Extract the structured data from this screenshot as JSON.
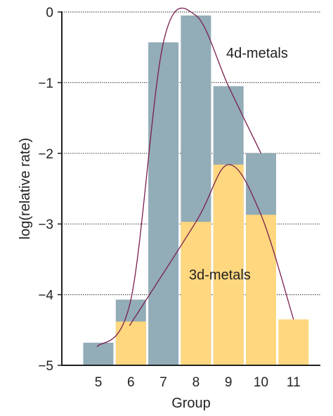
{
  "chart_data": {
    "type": "bar",
    "xlabel": "Group",
    "ylabel": "log(relative rate)",
    "categories": [
      "5",
      "6",
      "7",
      "8",
      "9",
      "10",
      "11"
    ],
    "ylim": [
      -5,
      0
    ],
    "yticks": [
      {
        "value": 0,
        "label": "0"
      },
      {
        "value": -1,
        "label": "−1"
      },
      {
        "value": -2,
        "label": "−2"
      },
      {
        "value": -3,
        "label": "−3"
      },
      {
        "value": -4,
        "label": "−4"
      },
      {
        "value": -5,
        "label": "−5"
      }
    ],
    "grid": true,
    "series": [
      {
        "name": "4d-metals",
        "color": "#92acb8",
        "values": [
          -4.68,
          -4.07,
          -0.43,
          -0.05,
          -1.05,
          -2.0,
          null
        ]
      },
      {
        "name": "3d-metals",
        "color": "#fed77e",
        "values": [
          null,
          -4.38,
          null,
          -2.97,
          -2.16,
          -2.87,
          -4.35
        ]
      }
    ],
    "curve_color": "#7a1e4e"
  }
}
